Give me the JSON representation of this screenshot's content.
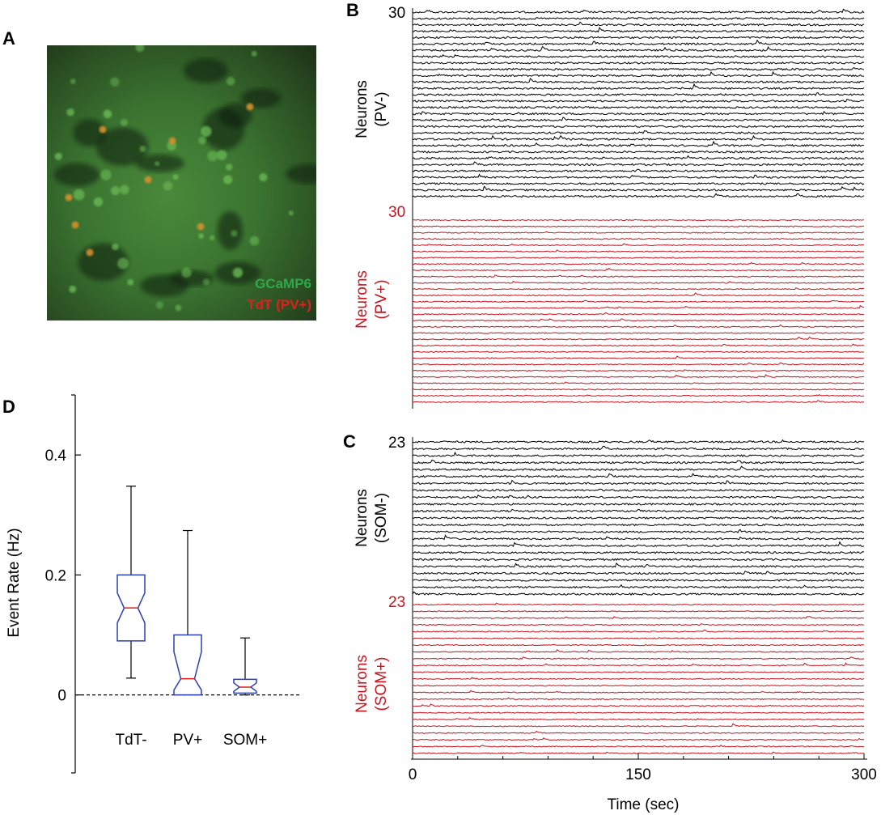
{
  "figure": {
    "panel_letters": {
      "a": "A",
      "b": "B",
      "c": "C",
      "d": "D"
    }
  },
  "panel_a": {
    "legend": [
      {
        "text": "GCaMP6",
        "color": "#2ea84a"
      },
      {
        "text": "TdT (PV+)",
        "color": "#e0201c"
      }
    ]
  },
  "panel_b": {
    "upper_group": {
      "count_label": "30",
      "label_line1": "Neurons",
      "label_line2": "(PV-)",
      "color": "#000000",
      "n_traces": 30
    },
    "lower_group": {
      "count_label": "30",
      "label_line1": "Neurons",
      "label_line2": "(PV+)",
      "color": "#c8141e",
      "n_traces": 30
    }
  },
  "panel_c": {
    "upper_group": {
      "count_label": "23",
      "label_line1": "Neurons",
      "label_line2": "(SOM-)",
      "color": "#000000",
      "n_traces": 23
    },
    "lower_group": {
      "count_label": "23",
      "label_line1": "Neurons",
      "label_line2": "(SOM+)",
      "color": "#c8141e",
      "n_traces": 23
    }
  },
  "time_axis": {
    "label": "Time (sec)",
    "ticks": [
      {
        "value": 0,
        "label": "0"
      },
      {
        "value": 150,
        "label": "150"
      },
      {
        "value": 300,
        "label": "300"
      }
    ],
    "range": [
      0,
      300
    ]
  },
  "chart_data": {
    "type": "box",
    "ylabel": "Event Rate (Hz)",
    "ylim": [
      -0.13,
      0.5
    ],
    "yticks": [
      {
        "value": 0,
        "label": "0"
      },
      {
        "value": 0.2,
        "label": "0.2"
      },
      {
        "value": 0.4,
        "label": "0.4"
      }
    ],
    "zero_line": "dashed",
    "box_color": "#2a3fb5",
    "median_color": "#e0201c",
    "categories": [
      "TdT-",
      "PV+",
      "SOM+"
    ],
    "boxes": [
      {
        "category": "TdT-",
        "whisker_low": 0.028,
        "q1": 0.09,
        "median": 0.145,
        "q3": 0.2,
        "whisker_high": 0.348,
        "notch_low": 0.12,
        "notch_high": 0.17
      },
      {
        "category": "PV+",
        "whisker_low": 0.0,
        "q1": 0.0,
        "median": 0.027,
        "q3": 0.1,
        "whisker_high": 0.274,
        "notch_low": 0.008,
        "notch_high": 0.072
      },
      {
        "category": "SOM+",
        "whisker_low": 0.0,
        "q1": 0.003,
        "median": 0.013,
        "q3": 0.026,
        "whisker_high": 0.095,
        "notch_low": 0.006,
        "notch_high": 0.02
      }
    ]
  }
}
